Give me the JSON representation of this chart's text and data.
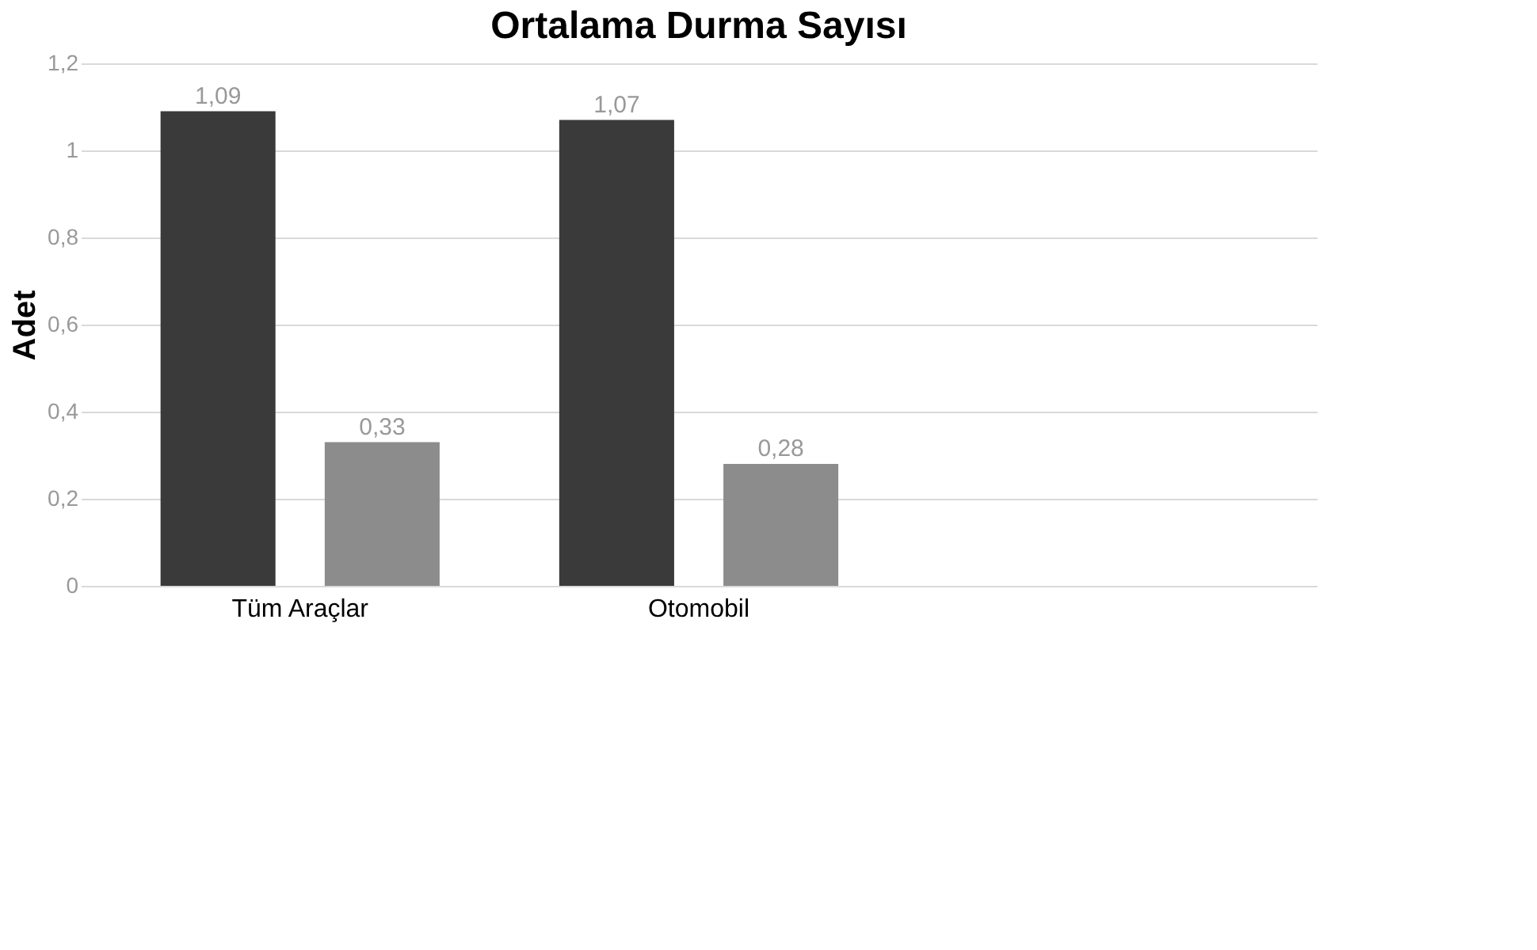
{
  "chart_data": {
    "type": "bar",
    "title": "Ortalama Durma Sayısı",
    "ylabel": "Adet",
    "categories": [
      "Tüm Araçlar",
      "Otomobil",
      null
    ],
    "series": [
      {
        "color": "#3a3a3a",
        "values": [
          1.09,
          1.07,
          null
        ],
        "value_labels": [
          "1,09",
          "1,07",
          null
        ]
      },
      {
        "color": "#8c8c8c",
        "values": [
          0.33,
          0.28,
          null
        ],
        "value_labels": [
          "0,33",
          "0,28",
          null
        ]
      }
    ],
    "ylim": [
      0,
      1.2
    ],
    "yticks": [
      0,
      {
        "value": 0.2,
        "label": "0,2"
      },
      {
        "value": 0.4,
        "label": "0,4"
      },
      {
        "value": 0.6,
        "label": "0,6"
      },
      {
        "value": 0.8,
        "label": "0,8"
      },
      1,
      {
        "value": 1.2,
        "label": "1,2"
      }
    ],
    "grid": "y",
    "legend": false
  }
}
